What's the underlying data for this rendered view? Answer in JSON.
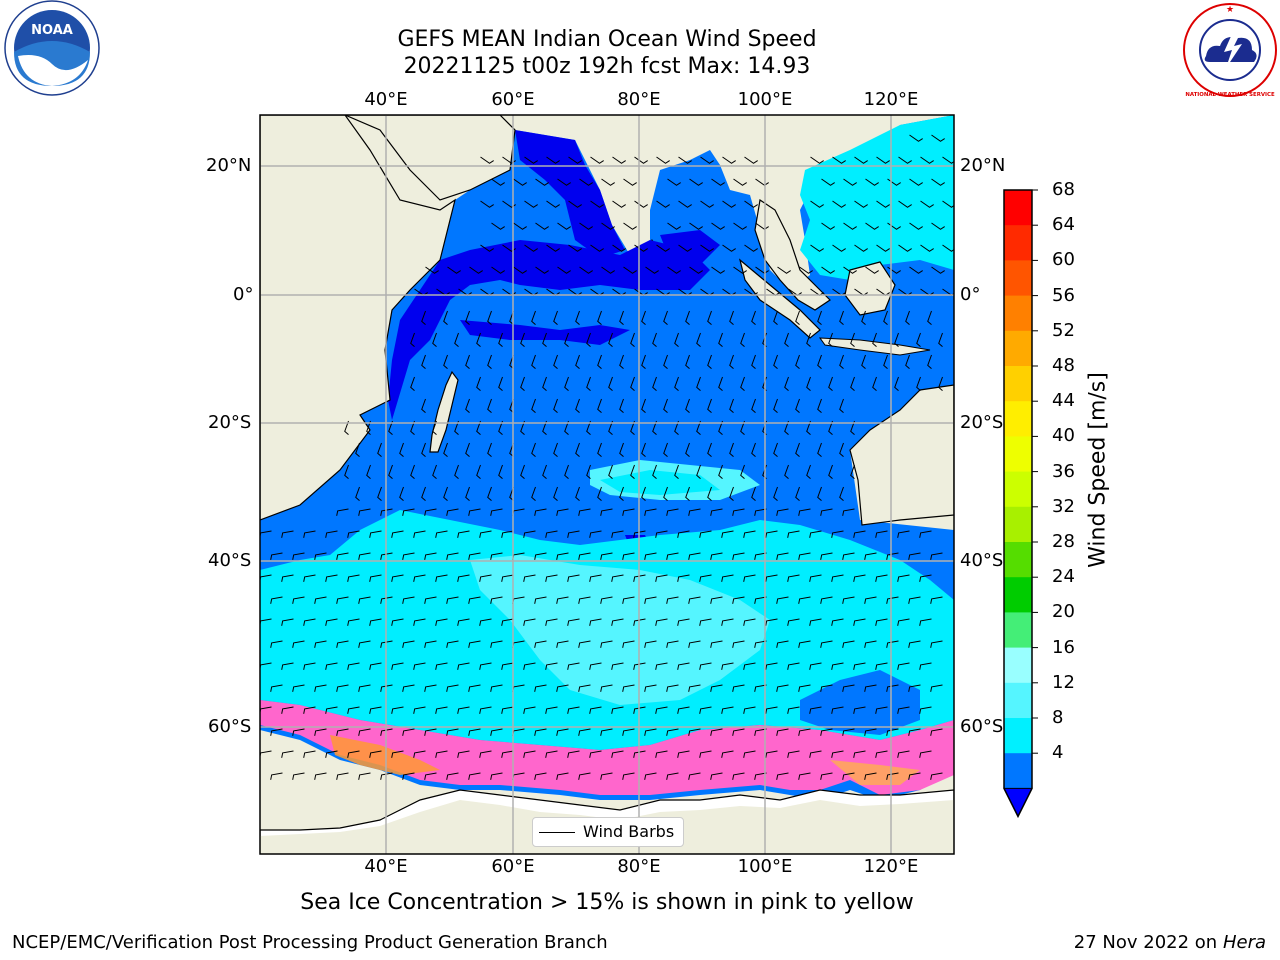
{
  "title": {
    "line1": "GEFS MEAN Indian Ocean Wind Speed",
    "line2": "20221125 t00z 192h fcst   Max: 14.93"
  },
  "map": {
    "lon_ticks": [
      "40°E",
      "60°E",
      "80°E",
      "100°E",
      "120°E"
    ],
    "lat_ticks": [
      "20°N",
      "0°",
      "20°S",
      "40°S",
      "60°S"
    ],
    "extent": {
      "lon": [
        20,
        130
      ],
      "lat": [
        -75,
        28
      ]
    },
    "legend_label": "Wind Barbs"
  },
  "colorbar": {
    "label": "Wind Speed [m/s]",
    "ticks": [
      "68",
      "64",
      "60",
      "56",
      "52",
      "48",
      "44",
      "40",
      "36",
      "32",
      "28",
      "24",
      "20",
      "16",
      "12",
      "8",
      "4"
    ],
    "colors": [
      "#ff0000",
      "#ff2a00",
      "#ff5500",
      "#ff8000",
      "#ffaa00",
      "#ffd000",
      "#ffee00",
      "#eeff00",
      "#ccff00",
      "#a8f000",
      "#55dd00",
      "#00cc00",
      "#44ee77",
      "#99ffff",
      "#55f5ff",
      "#00f0ff",
      "#0077ff"
    ],
    "extend_color": "#0000ff"
  },
  "note": "Sea Ice Concentration > 15% is shown in pink to yellow",
  "footer": {
    "left": "NCEP/EMC/Verification Post Processing Product Generation Branch",
    "right_date": "27 Nov 2022 on",
    "right_machine": "Hera"
  },
  "logos": {
    "left": "NOAA",
    "right": "NATIONAL WEATHER SERVICE"
  }
}
